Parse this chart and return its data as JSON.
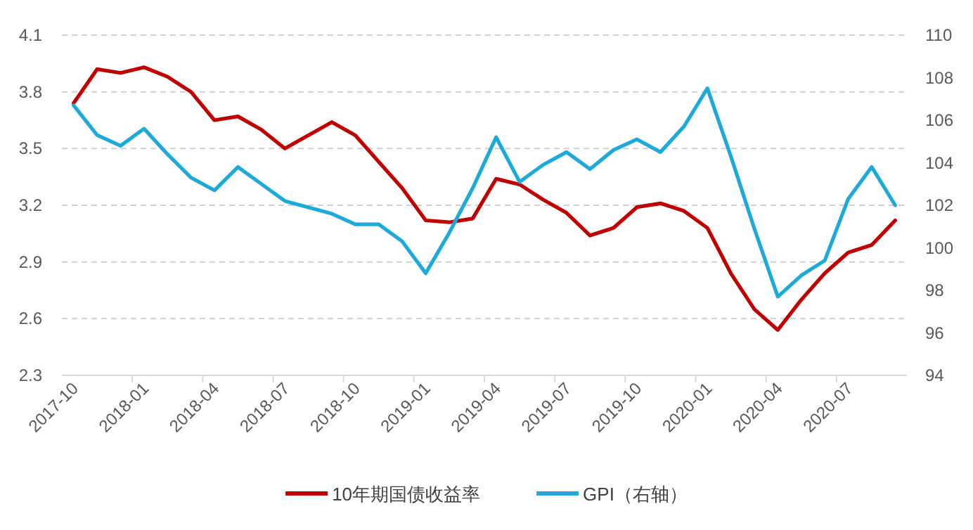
{
  "chart_data": {
    "type": "line",
    "categories": [
      "2017-10",
      null,
      null,
      "2018-01",
      null,
      null,
      "2018-04",
      null,
      null,
      "2018-07",
      null,
      null,
      "2018-10",
      null,
      null,
      "2019-01",
      null,
      null,
      "2019-04",
      null,
      null,
      "2019-07",
      null,
      null,
      "2019-10",
      null,
      null,
      "2020-01",
      null,
      null,
      "2020-04",
      null,
      null,
      "2020-07",
      null,
      null
    ],
    "series": [
      {
        "name": "10年期国债收益率",
        "color": "#c00000",
        "values": [
          3.74,
          3.92,
          3.9,
          3.93,
          3.88,
          3.8,
          3.65,
          3.67,
          3.6,
          3.5,
          3.57,
          3.64,
          3.57,
          3.43,
          3.29,
          3.12,
          3.11,
          3.13,
          3.34,
          3.31,
          3.23,
          3.16,
          3.04,
          3.08,
          3.19,
          3.21,
          3.17,
          3.08,
          2.84,
          2.65,
          2.54,
          2.7,
          2.84,
          2.95,
          2.99,
          3.12
        ]
      },
      {
        "name": "GPI（右轴）",
        "color": "#1eaad9",
        "axis": "y2",
        "values": [
          106.7,
          105.3,
          104.8,
          105.6,
          104.4,
          103.3,
          102.7,
          103.8,
          103.0,
          102.2,
          101.9,
          101.6,
          101.1,
          101.1,
          100.3,
          98.8,
          100.7,
          102.8,
          105.2,
          103.1,
          103.9,
          104.5,
          103.7,
          104.6,
          105.1,
          104.5,
          105.7,
          107.5,
          104.3,
          100.9,
          97.7,
          98.7,
          99.4,
          102.3,
          103.8,
          102.0
        ]
      }
    ],
    "ylim": [
      2.3,
      4.1
    ],
    "yticks": [
      2.3,
      2.6,
      2.9,
      3.2,
      3.5,
      3.8,
      4.1
    ],
    "y2lim": [
      94,
      110
    ],
    "y2ticks": [
      94,
      96,
      98,
      100,
      102,
      104,
      106,
      108,
      110
    ],
    "grid": "y",
    "legend": "bottom"
  }
}
